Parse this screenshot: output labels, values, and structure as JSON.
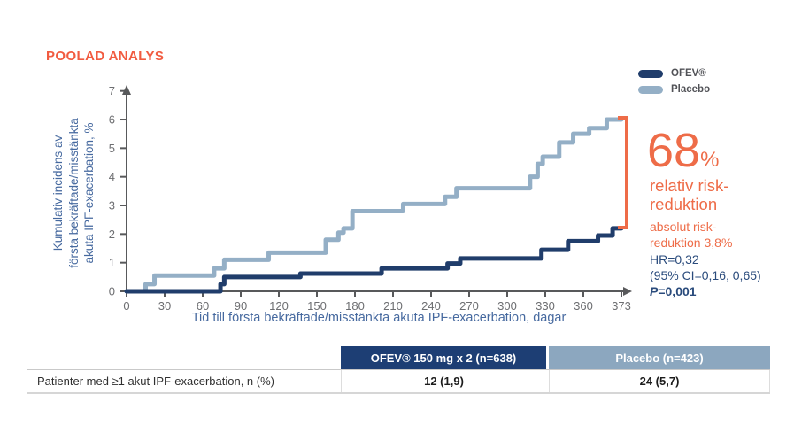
{
  "header": {
    "title": "POOLAD ANALYS",
    "title_color": "#f15b40"
  },
  "legend": {
    "items": [
      {
        "label": "OFEV®",
        "color": "#203d6b"
      },
      {
        "label": "Placebo",
        "color": "#94afc6"
      }
    ]
  },
  "chart_data": {
    "type": "line",
    "step": true,
    "xlabel": "Tid till första bekräftade/misstänkta akuta IPF-exacerbation, dagar",
    "ylabel": "Kumulativ incidens av\nförsta bekräftade/misstänkta\nakuta IPF-exacerbation, %",
    "x_ticks": [
      0,
      30,
      60,
      90,
      120,
      150,
      180,
      210,
      240,
      270,
      300,
      330,
      360,
      373
    ],
    "y_ticks": [
      0,
      1,
      2,
      3,
      4,
      5,
      6,
      7
    ],
    "xlim": [
      0,
      373
    ],
    "ylim": [
      0,
      7
    ],
    "axis_color": "#58595b",
    "tick_label_color": "#6d6e71",
    "label_color": "#46699f",
    "series": [
      {
        "name": "Placebo",
        "color": "#94afc6",
        "points": [
          [
            0,
            0
          ],
          [
            15,
            0.25
          ],
          [
            22,
            0.55
          ],
          [
            69,
            0.8
          ],
          [
            77,
            1.1
          ],
          [
            112,
            1.35
          ],
          [
            157,
            1.8
          ],
          [
            167,
            2.05
          ],
          [
            171,
            2.2
          ],
          [
            178,
            2.8
          ],
          [
            218,
            3.05
          ],
          [
            251,
            3.3
          ],
          [
            260,
            3.6
          ],
          [
            318,
            4.0
          ],
          [
            324,
            4.45
          ],
          [
            328,
            4.7
          ],
          [
            341,
            5.2
          ],
          [
            352,
            5.5
          ],
          [
            362,
            5.7
          ],
          [
            368,
            6.0
          ],
          [
            373,
            6.0
          ]
        ]
      },
      {
        "name": "OFEV®",
        "color": "#203d6b",
        "points": [
          [
            0,
            0
          ],
          [
            74,
            0.25
          ],
          [
            77,
            0.5
          ],
          [
            137,
            0.62
          ],
          [
            201,
            0.8
          ],
          [
            253,
            0.97
          ],
          [
            263,
            1.15
          ],
          [
            327,
            1.45
          ],
          [
            348,
            1.75
          ],
          [
            365,
            1.95
          ],
          [
            370,
            2.2
          ],
          [
            373,
            2.2
          ]
        ]
      }
    ]
  },
  "annotation": {
    "color": "#ee6c48",
    "headline_value": "68",
    "headline_unit": "%",
    "relative_text": "relativ risk-\nreduktion",
    "absolute_text": "absolut risk-\nreduktion 3,8%",
    "stats_color": "#2a4b7c",
    "hr": "HR=0,32",
    "ci": "(95% CI=0,16, 0,65)",
    "p_label": "P",
    "p_value": "=0,001"
  },
  "table": {
    "row_label": "Patienter med ≥1 akut IPF-exacerbation, n (%)",
    "columns": [
      {
        "label": "OFEV® 150 mg x 2 (n=638)",
        "bg": "#1d3e74"
      },
      {
        "label": "Placebo (n=423)",
        "bg": "#8ca7bf"
      }
    ],
    "values": [
      "12 (1,9)",
      "24 (5,7)"
    ]
  }
}
